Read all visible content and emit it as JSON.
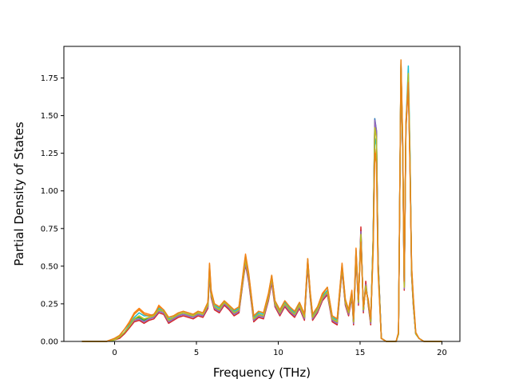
{
  "chart_data": {
    "type": "line",
    "title": "",
    "xlabel": "Frequency (THz)",
    "ylabel": "Partial Density of States",
    "xlim": [
      -3.1,
      21.1
    ],
    "ylim": [
      0.0,
      1.96
    ],
    "xticks": [
      0,
      5,
      10,
      15,
      20
    ],
    "xtick_labels": [
      "0",
      "5",
      "10",
      "15",
      "20"
    ],
    "yticks": [
      0.0,
      0.25,
      0.5,
      0.75,
      1.0,
      1.25,
      1.5,
      1.75
    ],
    "ytick_labels": [
      "0.00",
      "0.25",
      "0.50",
      "0.75",
      "1.00",
      "1.25",
      "1.50",
      "1.75"
    ],
    "grid": false,
    "legend": "none",
    "x": [
      -2.0,
      -0.5,
      0.0,
      0.3,
      0.6,
      0.9,
      1.2,
      1.5,
      1.8,
      2.1,
      2.4,
      2.7,
      3.0,
      3.3,
      3.6,
      3.9,
      4.2,
      4.5,
      4.8,
      5.1,
      5.4,
      5.7,
      5.8,
      5.9,
      6.1,
      6.4,
      6.7,
      7.0,
      7.3,
      7.6,
      7.9,
      8.0,
      8.2,
      8.5,
      8.8,
      9.1,
      9.4,
      9.6,
      9.8,
      10.1,
      10.4,
      10.7,
      11.0,
      11.3,
      11.6,
      11.8,
      11.95,
      12.1,
      12.4,
      12.7,
      13.0,
      13.3,
      13.6,
      13.9,
      14.1,
      14.3,
      14.5,
      14.6,
      14.75,
      14.9,
      15.05,
      15.2,
      15.35,
      15.5,
      15.65,
      15.8,
      15.9,
      16.0,
      16.1,
      16.3,
      16.6,
      16.9,
      17.2,
      17.35,
      17.5,
      17.6,
      17.7,
      17.8,
      17.95,
      18.05,
      18.15,
      18.25,
      18.4,
      18.6,
      18.9,
      19.5,
      20.0
    ],
    "series": [
      {
        "color": "#1f77b4",
        "values": [
          0,
          0,
          0.01,
          0.03,
          0.06,
          0.1,
          0.14,
          0.15,
          0.13,
          0.15,
          0.16,
          0.2,
          0.19,
          0.13,
          0.15,
          0.17,
          0.18,
          0.17,
          0.16,
          0.18,
          0.17,
          0.23,
          0.45,
          0.3,
          0.22,
          0.2,
          0.25,
          0.22,
          0.18,
          0.2,
          0.45,
          0.52,
          0.4,
          0.14,
          0.17,
          0.16,
          0.28,
          0.4,
          0.24,
          0.18,
          0.24,
          0.2,
          0.17,
          0.23,
          0.15,
          0.52,
          0.3,
          0.15,
          0.2,
          0.28,
          0.32,
          0.14,
          0.12,
          0.48,
          0.25,
          0.18,
          0.3,
          0.12,
          0.58,
          0.25,
          0.74,
          0.2,
          0.38,
          0.25,
          0.12,
          0.7,
          1.48,
          1.4,
          0.55,
          0.02,
          0.0,
          0.0,
          0.0,
          0.05,
          1.83,
          1.3,
          0.35,
          1.42,
          1.75,
          1.2,
          0.45,
          0.25,
          0.05,
          0.02,
          0.0,
          0.0,
          0
        ]
      },
      {
        "color": "#d62728",
        "values": [
          0,
          0,
          0.01,
          0.02,
          0.05,
          0.09,
          0.13,
          0.14,
          0.12,
          0.14,
          0.15,
          0.19,
          0.18,
          0.12,
          0.14,
          0.16,
          0.17,
          0.16,
          0.15,
          0.17,
          0.16,
          0.22,
          0.44,
          0.29,
          0.21,
          0.19,
          0.24,
          0.21,
          0.17,
          0.19,
          0.44,
          0.51,
          0.39,
          0.13,
          0.16,
          0.15,
          0.27,
          0.39,
          0.23,
          0.17,
          0.23,
          0.19,
          0.16,
          0.22,
          0.14,
          0.5,
          0.29,
          0.14,
          0.19,
          0.27,
          0.31,
          0.13,
          0.11,
          0.47,
          0.24,
          0.17,
          0.29,
          0.11,
          0.56,
          0.24,
          0.76,
          0.19,
          0.4,
          0.24,
          0.11,
          0.68,
          1.45,
          1.38,
          0.53,
          0.02,
          0.0,
          0.0,
          0.0,
          0.05,
          1.8,
          1.28,
          0.34,
          1.4,
          1.72,
          1.18,
          0.44,
          0.24,
          0.05,
          0.02,
          0.0,
          0.0,
          0
        ]
      },
      {
        "color": "#2ca02c",
        "values": [
          0,
          0,
          0.01,
          0.03,
          0.06,
          0.1,
          0.15,
          0.16,
          0.14,
          0.16,
          0.17,
          0.21,
          0.2,
          0.14,
          0.16,
          0.18,
          0.19,
          0.18,
          0.17,
          0.19,
          0.18,
          0.24,
          0.46,
          0.31,
          0.23,
          0.21,
          0.26,
          0.23,
          0.19,
          0.21,
          0.46,
          0.53,
          0.41,
          0.15,
          0.18,
          0.17,
          0.29,
          0.41,
          0.25,
          0.19,
          0.25,
          0.21,
          0.18,
          0.24,
          0.16,
          0.53,
          0.31,
          0.16,
          0.21,
          0.29,
          0.33,
          0.15,
          0.13,
          0.49,
          0.26,
          0.19,
          0.31,
          0.13,
          0.59,
          0.26,
          0.72,
          0.21,
          0.37,
          0.26,
          0.13,
          0.7,
          1.46,
          1.39,
          0.54,
          0.02,
          0.0,
          0.0,
          0.0,
          0.05,
          1.84,
          1.31,
          0.36,
          1.43,
          1.76,
          1.21,
          0.46,
          0.26,
          0.05,
          0.02,
          0.0,
          0.0,
          0
        ]
      },
      {
        "color": "#9467bd",
        "values": [
          0,
          0,
          0.01,
          0.03,
          0.06,
          0.1,
          0.14,
          0.15,
          0.13,
          0.15,
          0.16,
          0.2,
          0.19,
          0.13,
          0.15,
          0.17,
          0.18,
          0.17,
          0.16,
          0.18,
          0.17,
          0.23,
          0.45,
          0.3,
          0.22,
          0.2,
          0.25,
          0.22,
          0.18,
          0.2,
          0.45,
          0.52,
          0.4,
          0.14,
          0.17,
          0.16,
          0.28,
          0.4,
          0.24,
          0.18,
          0.24,
          0.2,
          0.17,
          0.23,
          0.15,
          0.52,
          0.3,
          0.15,
          0.2,
          0.28,
          0.32,
          0.14,
          0.12,
          0.48,
          0.25,
          0.18,
          0.3,
          0.12,
          0.57,
          0.25,
          0.73,
          0.2,
          0.38,
          0.25,
          0.12,
          0.69,
          1.47,
          1.4,
          0.55,
          0.02,
          0.0,
          0.0,
          0.0,
          0.05,
          1.82,
          1.29,
          0.35,
          1.41,
          1.74,
          1.19,
          0.45,
          0.25,
          0.05,
          0.02,
          0.0,
          0.0,
          0
        ]
      },
      {
        "color": "#17becf",
        "values": [
          0,
          0,
          0.01,
          0.03,
          0.06,
          0.11,
          0.16,
          0.19,
          0.17,
          0.17,
          0.18,
          0.22,
          0.2,
          0.15,
          0.16,
          0.18,
          0.19,
          0.18,
          0.17,
          0.19,
          0.18,
          0.25,
          0.48,
          0.32,
          0.24,
          0.22,
          0.26,
          0.23,
          0.2,
          0.22,
          0.47,
          0.55,
          0.43,
          0.16,
          0.19,
          0.18,
          0.3,
          0.43,
          0.26,
          0.2,
          0.26,
          0.22,
          0.19,
          0.25,
          0.17,
          0.54,
          0.32,
          0.17,
          0.22,
          0.3,
          0.34,
          0.16,
          0.14,
          0.5,
          0.27,
          0.2,
          0.32,
          0.14,
          0.6,
          0.27,
          0.7,
          0.22,
          0.36,
          0.27,
          0.14,
          0.66,
          1.35,
          1.3,
          0.5,
          0.02,
          0.0,
          0.0,
          0.0,
          0.05,
          1.85,
          1.32,
          0.37,
          1.44,
          1.83,
          1.25,
          0.48,
          0.27,
          0.05,
          0.02,
          0.0,
          0.0,
          0
        ]
      },
      {
        "color": "#ff7f0e",
        "values": [
          0,
          0,
          0.02,
          0.04,
          0.08,
          0.13,
          0.19,
          0.22,
          0.19,
          0.18,
          0.17,
          0.24,
          0.21,
          0.16,
          0.17,
          0.19,
          0.2,
          0.19,
          0.18,
          0.2,
          0.19,
          0.26,
          0.52,
          0.34,
          0.25,
          0.23,
          0.27,
          0.24,
          0.21,
          0.23,
          0.5,
          0.58,
          0.45,
          0.17,
          0.2,
          0.19,
          0.32,
          0.44,
          0.27,
          0.21,
          0.27,
          0.23,
          0.2,
          0.26,
          0.18,
          0.55,
          0.33,
          0.18,
          0.23,
          0.32,
          0.36,
          0.17,
          0.15,
          0.52,
          0.28,
          0.21,
          0.34,
          0.15,
          0.62,
          0.28,
          0.68,
          0.23,
          0.34,
          0.28,
          0.15,
          0.62,
          1.28,
          1.2,
          0.48,
          0.02,
          0.0,
          0.0,
          0.0,
          0.06,
          1.86,
          1.35,
          0.4,
          1.45,
          1.7,
          1.15,
          0.5,
          0.3,
          0.06,
          0.02,
          0.0,
          0.0,
          0
        ]
      },
      {
        "color": "#bcbd22",
        "values": [
          0,
          0,
          0.01,
          0.03,
          0.06,
          0.1,
          0.15,
          0.17,
          0.15,
          0.16,
          0.17,
          0.21,
          0.2,
          0.14,
          0.16,
          0.18,
          0.19,
          0.18,
          0.17,
          0.19,
          0.18,
          0.24,
          0.47,
          0.31,
          0.23,
          0.21,
          0.26,
          0.23,
          0.19,
          0.21,
          0.46,
          0.54,
          0.42,
          0.15,
          0.18,
          0.17,
          0.29,
          0.42,
          0.25,
          0.19,
          0.25,
          0.21,
          0.18,
          0.24,
          0.16,
          0.53,
          0.31,
          0.16,
          0.21,
          0.29,
          0.33,
          0.15,
          0.13,
          0.49,
          0.26,
          0.19,
          0.31,
          0.13,
          0.59,
          0.26,
          0.71,
          0.21,
          0.37,
          0.26,
          0.13,
          0.68,
          1.42,
          1.35,
          0.52,
          0.02,
          0.0,
          0.0,
          0.0,
          0.05,
          1.84,
          1.31,
          0.36,
          1.43,
          1.78,
          1.22,
          0.46,
          0.26,
          0.05,
          0.02,
          0.0,
          0.0,
          0
        ]
      },
      {
        "color": "#e8861a",
        "values": [
          0,
          0,
          0.02,
          0.04,
          0.08,
          0.12,
          0.18,
          0.21,
          0.18,
          0.17,
          0.18,
          0.23,
          0.21,
          0.16,
          0.17,
          0.19,
          0.2,
          0.19,
          0.18,
          0.2,
          0.19,
          0.26,
          0.51,
          0.33,
          0.25,
          0.23,
          0.27,
          0.24,
          0.21,
          0.23,
          0.49,
          0.57,
          0.44,
          0.17,
          0.2,
          0.19,
          0.31,
          0.44,
          0.27,
          0.21,
          0.27,
          0.23,
          0.2,
          0.26,
          0.18,
          0.55,
          0.33,
          0.18,
          0.23,
          0.31,
          0.36,
          0.17,
          0.15,
          0.51,
          0.28,
          0.21,
          0.33,
          0.15,
          0.61,
          0.28,
          0.66,
          0.23,
          0.34,
          0.28,
          0.15,
          0.6,
          1.25,
          1.18,
          0.46,
          0.02,
          0.0,
          0.0,
          0.0,
          0.06,
          1.87,
          1.36,
          0.4,
          1.46,
          1.72,
          1.16,
          0.5,
          0.3,
          0.06,
          0.02,
          0.0,
          0.0,
          0
        ]
      }
    ]
  }
}
